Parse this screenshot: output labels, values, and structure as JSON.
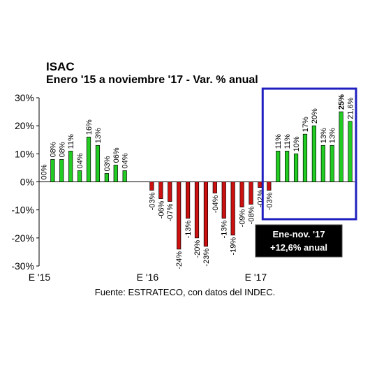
{
  "chart_data": {
    "type": "bar",
    "title": "ISAC",
    "subtitle": "Enero '15 a noviembre '17 - Var. % anual",
    "source": "Fuente: ESTRATECO, con datos del INDEC.",
    "ylim": [
      -30,
      30
    ],
    "yticks": [
      30,
      20,
      10,
      0,
      -10,
      -20,
      -30
    ],
    "ytick_labels": [
      "30%",
      "20%",
      "10%",
      "0%",
      "-10%",
      "-20%",
      "-30%"
    ],
    "x_tick_labels": [
      {
        "index": 0,
        "label": "E '15"
      },
      {
        "index": 12,
        "label": "E '16"
      },
      {
        "index": 24,
        "label": "E '17"
      }
    ],
    "grid": false,
    "colors": {
      "positive": "#22cc22",
      "negative": "#cc1111",
      "box": "#1f1fbf",
      "annotation_bg": "#000000"
    },
    "values": [
      0.0,
      8,
      8,
      11,
      4,
      16,
      13,
      3,
      6,
      4,
      null,
      null,
      -3,
      -6,
      -7,
      -24,
      -13,
      -20,
      -23,
      -4,
      -13,
      -19,
      -9,
      -8,
      -2,
      -3,
      11,
      11,
      10,
      17,
      20,
      13,
      13,
      25,
      21.6
    ],
    "data_labels": [
      "00%",
      "08%",
      "08%",
      "11%",
      "04%",
      "16%",
      "13%",
      "03%",
      "06%",
      "04%",
      "",
      "",
      "-03%",
      "-06%",
      "-07%",
      "-24%",
      "-13%",
      "-20%",
      "-23%",
      "-04%",
      "-13%",
      "-19%",
      "-09%",
      "-08%",
      "-02%",
      "-03%",
      "11%",
      "11%",
      "10%",
      "17%",
      "20%",
      "13%",
      "13%",
      "25%",
      "21,6%"
    ],
    "highlight_range": [
      26,
      34
    ],
    "annotation": {
      "line1": "Ene-nov. '17",
      "line2": "+12,6% anual"
    }
  }
}
